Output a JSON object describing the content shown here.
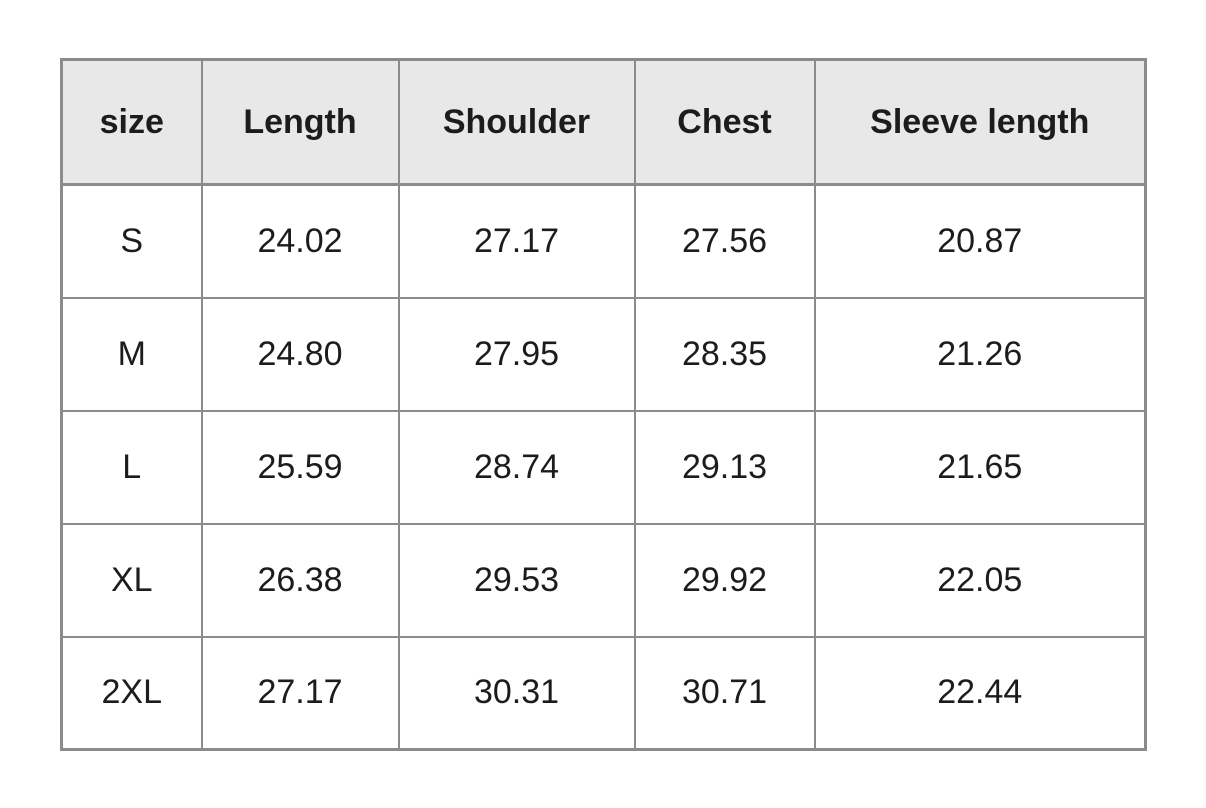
{
  "colors": {
    "header_bg": "#e8e8e8",
    "border": "#8a8b8c",
    "text": "#1b1c1e",
    "row_bg": "#ffffff"
  },
  "chart_data": {
    "type": "table",
    "columns": [
      "size",
      "Length",
      "Shoulder",
      "Chest",
      "Sleeve length"
    ],
    "rows": [
      [
        "S",
        "24.02",
        "27.17",
        "27.56",
        "20.87"
      ],
      [
        "M",
        "24.80",
        "27.95",
        "28.35",
        "21.26"
      ],
      [
        "L",
        "25.59",
        "28.74",
        "29.13",
        "21.65"
      ],
      [
        "XL",
        "26.38",
        "29.53",
        "29.92",
        "22.05"
      ],
      [
        "2XL",
        "27.17",
        "30.31",
        "30.71",
        "22.44"
      ]
    ],
    "layout": {
      "grid": true,
      "header_position": "top",
      "value_alignment": "center"
    }
  }
}
